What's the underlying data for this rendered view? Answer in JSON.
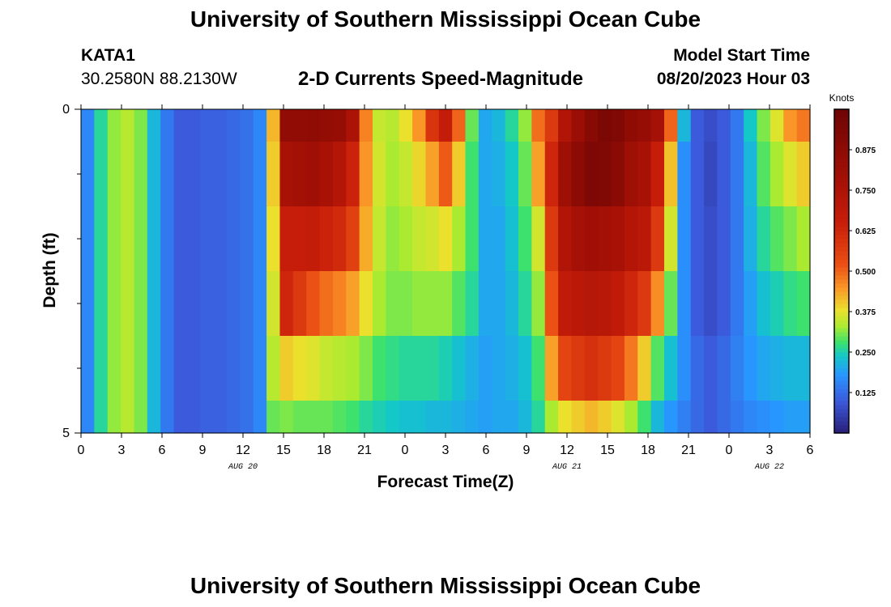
{
  "header": {
    "title": "University of Southern Mississippi Ocean Cube",
    "station": "KATA1",
    "coordinates": "30.2580N  88.2130W",
    "chart_title": "2-D Currents Speed-Magnitude",
    "model_start_label": "Model Start Time",
    "model_start_value": "08/20/2023 Hour 03"
  },
  "footer": {
    "title": "University of Southern Mississippi Ocean Cube"
  },
  "chart_data": {
    "type": "heatmap",
    "title": "2-D Currents Speed-Magnitude",
    "xlabel": "Forecast Time(Z)",
    "ylabel": "Depth (ft)",
    "x_hours_range": [
      0,
      54
    ],
    "x_ticks": [
      {
        "h": 0,
        "label": "0"
      },
      {
        "h": 3,
        "label": "3"
      },
      {
        "h": 6,
        "label": "6"
      },
      {
        "h": 9,
        "label": "9"
      },
      {
        "h": 12,
        "label": "12"
      },
      {
        "h": 15,
        "label": "15"
      },
      {
        "h": 18,
        "label": "18"
      },
      {
        "h": 21,
        "label": "21"
      },
      {
        "h": 24,
        "label": "0"
      },
      {
        "h": 27,
        "label": "3"
      },
      {
        "h": 30,
        "label": "6"
      },
      {
        "h": 33,
        "label": "9"
      },
      {
        "h": 36,
        "label": "12"
      },
      {
        "h": 39,
        "label": "15"
      },
      {
        "h": 42,
        "label": "18"
      },
      {
        "h": 45,
        "label": "21"
      },
      {
        "h": 48,
        "label": "0"
      },
      {
        "h": 51,
        "label": "3"
      },
      {
        "h": 54,
        "label": "6"
      }
    ],
    "date_labels": [
      {
        "h": 12,
        "label": "AUG 20"
      },
      {
        "h": 36,
        "label": "AUG 21"
      },
      {
        "h": 51,
        "label": "AUG 22"
      }
    ],
    "y_range": [
      0,
      5
    ],
    "y_ticks": [
      {
        "v": 0,
        "label": "0"
      },
      {
        "v": 5,
        "label": "5"
      }
    ],
    "y_minor_ticks": [
      1,
      2,
      3,
      4
    ],
    "layer_boundaries": [
      0,
      0.5,
      1.5,
      2.5,
      3.5,
      4.5,
      5
    ],
    "colorbar": {
      "label": "Knots",
      "range": [
        0,
        1.0
      ],
      "ticks": [
        0.125,
        0.25,
        0.375,
        0.5,
        0.625,
        0.75,
        0.875
      ],
      "tick_labels": [
        "0.125",
        "0.250",
        "0.375",
        "0.500",
        "0.625",
        "0.750",
        "0.875"
      ]
    },
    "speed_knots_by_layer": [
      [
        0.16,
        0.26,
        0.32,
        0.34,
        0.31,
        0.22,
        0.14,
        0.1,
        0.1,
        0.11,
        0.11,
        0.12,
        0.13,
        0.16,
        0.42,
        0.86,
        0.86,
        0.87,
        0.85,
        0.84,
        0.76,
        0.47,
        0.35,
        0.34,
        0.38,
        0.45,
        0.59,
        0.67,
        0.5,
        0.3,
        0.2,
        0.22,
        0.26,
        0.32,
        0.49,
        0.58,
        0.74,
        0.82,
        0.9,
        0.95,
        0.93,
        0.87,
        0.84,
        0.78,
        0.5,
        0.22,
        0.1,
        0.08,
        0.1,
        0.14,
        0.24,
        0.31,
        0.37,
        0.45,
        0.48
      ],
      [
        0.16,
        0.26,
        0.32,
        0.34,
        0.31,
        0.22,
        0.14,
        0.1,
        0.1,
        0.11,
        0.11,
        0.12,
        0.13,
        0.16,
        0.4,
        0.77,
        0.79,
        0.8,
        0.77,
        0.73,
        0.64,
        0.45,
        0.36,
        0.33,
        0.35,
        0.39,
        0.44,
        0.51,
        0.4,
        0.28,
        0.2,
        0.21,
        0.24,
        0.3,
        0.44,
        0.63,
        0.81,
        0.88,
        0.94,
        0.93,
        0.89,
        0.81,
        0.77,
        0.66,
        0.41,
        0.17,
        0.1,
        0.07,
        0.1,
        0.14,
        0.22,
        0.29,
        0.33,
        0.37,
        0.4
      ],
      [
        0.16,
        0.26,
        0.32,
        0.34,
        0.31,
        0.22,
        0.14,
        0.1,
        0.1,
        0.11,
        0.11,
        0.12,
        0.13,
        0.16,
        0.38,
        0.66,
        0.66,
        0.67,
        0.64,
        0.62,
        0.56,
        0.43,
        0.35,
        0.32,
        0.33,
        0.35,
        0.36,
        0.38,
        0.33,
        0.28,
        0.2,
        0.2,
        0.23,
        0.28,
        0.36,
        0.58,
        0.74,
        0.78,
        0.8,
        0.79,
        0.77,
        0.73,
        0.7,
        0.58,
        0.36,
        0.17,
        0.1,
        0.08,
        0.1,
        0.14,
        0.21,
        0.26,
        0.29,
        0.31,
        0.33
      ],
      [
        0.16,
        0.26,
        0.32,
        0.34,
        0.31,
        0.22,
        0.14,
        0.1,
        0.1,
        0.11,
        0.11,
        0.12,
        0.13,
        0.16,
        0.36,
        0.63,
        0.58,
        0.52,
        0.49,
        0.47,
        0.44,
        0.38,
        0.33,
        0.31,
        0.31,
        0.32,
        0.32,
        0.32,
        0.29,
        0.26,
        0.2,
        0.2,
        0.22,
        0.26,
        0.32,
        0.52,
        0.68,
        0.7,
        0.72,
        0.71,
        0.68,
        0.63,
        0.58,
        0.46,
        0.3,
        0.17,
        0.1,
        0.08,
        0.1,
        0.14,
        0.19,
        0.23,
        0.25,
        0.27,
        0.28
      ],
      [
        0.16,
        0.26,
        0.32,
        0.34,
        0.31,
        0.22,
        0.14,
        0.1,
        0.1,
        0.11,
        0.11,
        0.12,
        0.13,
        0.16,
        0.34,
        0.4,
        0.38,
        0.37,
        0.35,
        0.34,
        0.33,
        0.31,
        0.28,
        0.27,
        0.26,
        0.26,
        0.26,
        0.25,
        0.23,
        0.21,
        0.19,
        0.2,
        0.21,
        0.23,
        0.28,
        0.44,
        0.55,
        0.58,
        0.6,
        0.58,
        0.55,
        0.48,
        0.4,
        0.29,
        0.23,
        0.17,
        0.12,
        0.1,
        0.12,
        0.15,
        0.18,
        0.2,
        0.21,
        0.22,
        0.22
      ],
      [
        0.16,
        0.26,
        0.32,
        0.34,
        0.31,
        0.22,
        0.14,
        0.1,
        0.1,
        0.11,
        0.11,
        0.12,
        0.13,
        0.16,
        0.3,
        0.31,
        0.3,
        0.3,
        0.3,
        0.29,
        0.28,
        0.26,
        0.25,
        0.24,
        0.23,
        0.23,
        0.22,
        0.22,
        0.21,
        0.2,
        0.19,
        0.2,
        0.2,
        0.22,
        0.26,
        0.33,
        0.38,
        0.4,
        0.42,
        0.4,
        0.37,
        0.33,
        0.28,
        0.22,
        0.18,
        0.15,
        0.12,
        0.1,
        0.12,
        0.14,
        0.16,
        0.17,
        0.18,
        0.19,
        0.19
      ]
    ]
  }
}
